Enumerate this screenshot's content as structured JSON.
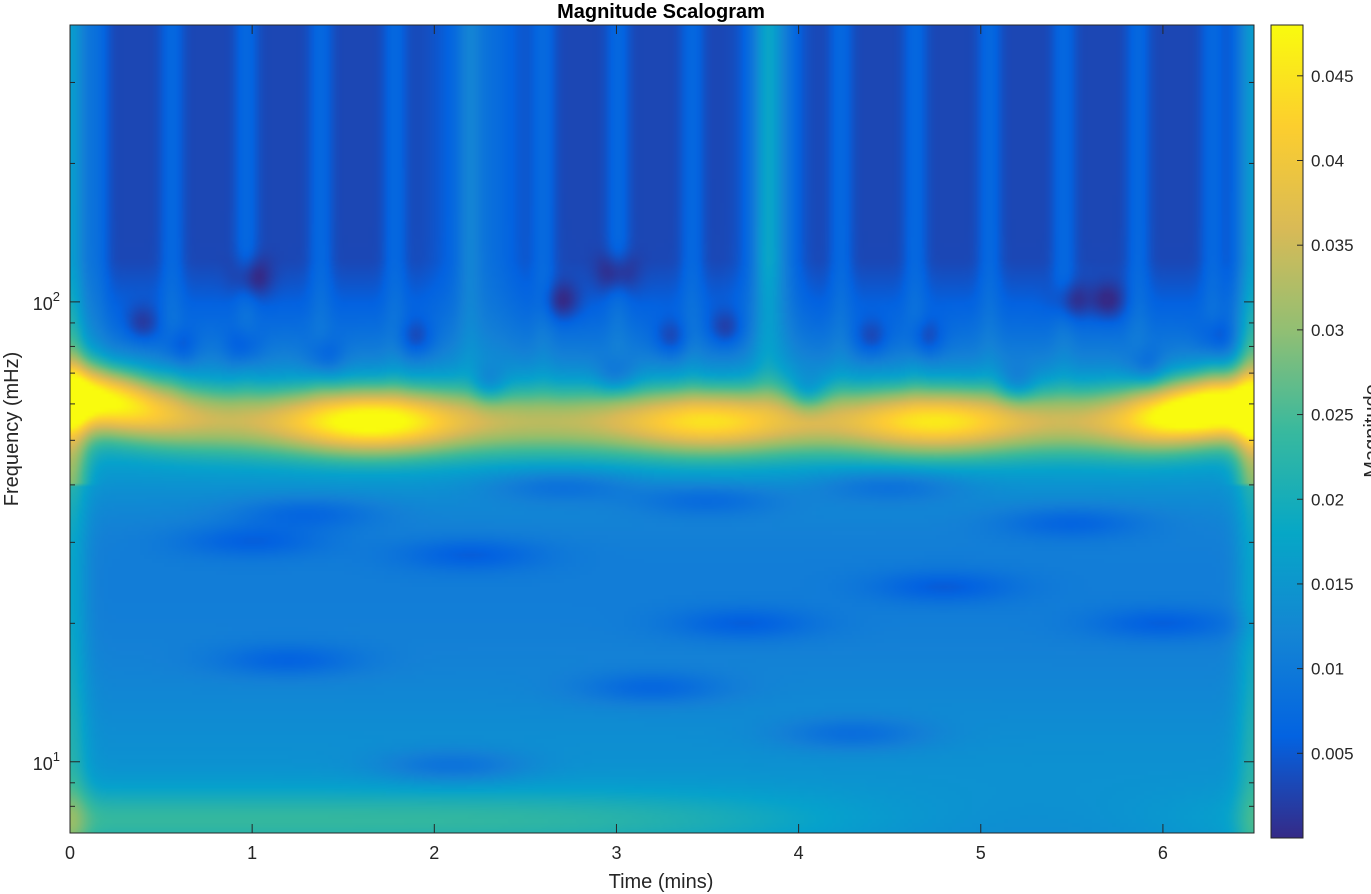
{
  "chart_data": {
    "type": "heatmap",
    "title": "Magnitude Scalogram",
    "xlabel": "Time (mins)",
    "ylabel": "Frequency (mHz)",
    "colorbar_label": "Magnitude",
    "x_ticks": [
      "0",
      "1",
      "2",
      "3",
      "4",
      "5",
      "6"
    ],
    "y_ticks": [
      {
        "base": "10",
        "exp": "1",
        "value": 10
      },
      {
        "base": "10",
        "exp": "2",
        "value": 100
      }
    ],
    "colorbar_ticks": [
      "0.005",
      "0.01",
      "0.015",
      "0.02",
      "0.025",
      "0.03",
      "0.035",
      "0.04",
      "0.045"
    ],
    "xlim": [
      0,
      6.5
    ],
    "ylim": [
      7,
      400
    ],
    "yscale": "log",
    "clim": [
      0,
      0.048
    ],
    "colormap": "parula",
    "ridge_frequency_mHz": 55,
    "ridge_peaks": [
      {
        "time": 0.1,
        "frequency": 63,
        "magnitude": 0.043
      },
      {
        "time": 1.65,
        "frequency": 55,
        "magnitude": 0.042
      },
      {
        "time": 3.5,
        "frequency": 55,
        "magnitude": 0.036
      },
      {
        "time": 4.75,
        "frequency": 55,
        "magnitude": 0.037
      },
      {
        "time": 6.25,
        "frequency": 58,
        "magnitude": 0.048
      }
    ],
    "colors": {
      "parula_low": "#352a87",
      "parula_mid": "#12beb9",
      "parula_high": "#f9fb0e"
    }
  }
}
